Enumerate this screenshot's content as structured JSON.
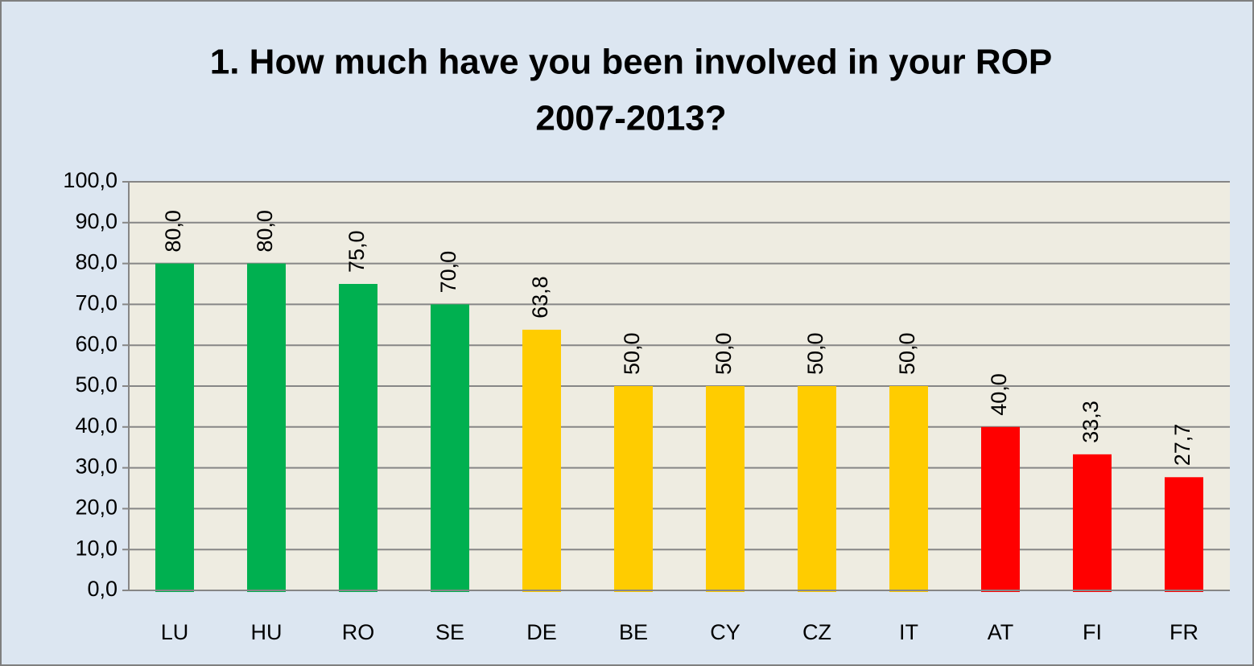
{
  "chart_data": {
    "type": "bar",
    "title": [
      "1. How much have you been involved in  your ROP",
      "2007-2013?"
    ],
    "categories": [
      "LU",
      "HU",
      "RO",
      "SE",
      "DE",
      "BE",
      "CY",
      "CZ",
      "IT",
      "AT",
      "FI",
      "FR"
    ],
    "values": [
      80.0,
      80.0,
      75.0,
      70.0,
      63.8,
      50.0,
      50.0,
      50.0,
      50.0,
      40.0,
      33.3,
      27.7
    ],
    "value_labels": [
      "80,0",
      "80,0",
      "75,0",
      "70,0",
      "63,8",
      "50,0",
      "50,0",
      "50,0",
      "50,0",
      "40,0",
      "33,3",
      "27,7"
    ],
    "colors": [
      "#00b050",
      "#00b050",
      "#00b050",
      "#00b050",
      "#ffcc00",
      "#ffcc00",
      "#ffcc00",
      "#ffcc00",
      "#ffcc00",
      "#ff0000",
      "#ff0000",
      "#ff0000"
    ],
    "ylim": [
      0,
      100
    ],
    "yticks": [
      {
        "value": 0,
        "label": "0,0"
      },
      {
        "value": 10,
        "label": "10,0"
      },
      {
        "value": 20,
        "label": "20,0"
      },
      {
        "value": 30,
        "label": "30,0"
      },
      {
        "value": 40,
        "label": "40,0"
      },
      {
        "value": 50,
        "label": "50,0"
      },
      {
        "value": 60,
        "label": "60,0"
      },
      {
        "value": 70,
        "label": "70,0"
      },
      {
        "value": 80,
        "label": "80,0"
      },
      {
        "value": 90,
        "label": "90,0"
      },
      {
        "value": 100,
        "label": "100,0"
      }
    ],
    "grid": true
  }
}
